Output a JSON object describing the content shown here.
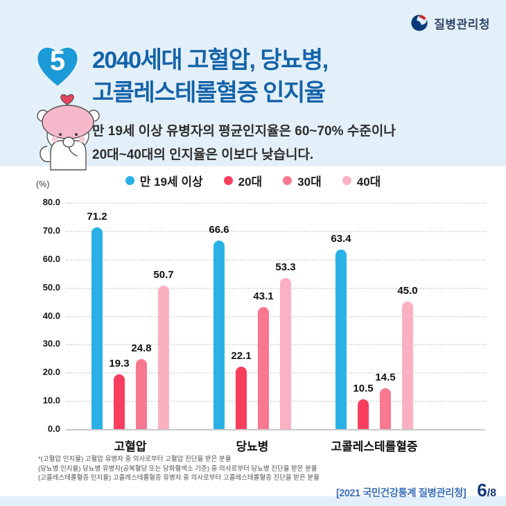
{
  "header": {
    "agency_name": "질병관리청",
    "badge_number": "5",
    "title_line1": "2040세대 고혈압, 당뇨병,",
    "title_line2": "고콜레스테롤혈증 인지율",
    "subtitle_line1": "만 19세 이상 유병자의 평균인지율은 60~70% 수준이나",
    "subtitle_line2": "20대~40대의 인지율은 이보다 낮습니다."
  },
  "chart_data": {
    "type": "bar",
    "title": "2040세대 고혈압, 당뇨병, 고콜레스테롤혈증 인지율",
    "unit_label": "(%)",
    "categories": [
      "고혈압",
      "당뇨병",
      "고콜레스테롤혈증"
    ],
    "series": [
      {
        "name": "만 19세 이상",
        "color": "#29B1E6",
        "values": [
          71.2,
          66.6,
          63.4
        ]
      },
      {
        "name": "20대",
        "color": "#F73E5F",
        "values": [
          19.3,
          22.1,
          10.5
        ]
      },
      {
        "name": "30대",
        "color": "#F8798F",
        "values": [
          24.8,
          43.1,
          14.5
        ]
      },
      {
        "name": "40대",
        "color": "#FBB0C1",
        "values": [
          50.7,
          53.3,
          45.0
        ]
      }
    ],
    "ylim": [
      0,
      80
    ],
    "yticks": [
      80,
      70,
      60,
      50,
      40,
      30,
      20,
      10,
      0
    ],
    "grid": "dotted-horizontal",
    "legend_position": "top"
  },
  "footnotes": [
    "*(고혈압 인지율) 고혈압 유병자 중 의사로부터 고혈압 진단을 받은 분율",
    "(당뇨병 인지율) 당뇨병 유병자(공복혈당 또는 당화혈색소 기준) 중 의사로부터 당뇨병 진단을 받은 분율",
    "(고콜레스테롤혈증 인지율) 고콜레스테롤혈증 유병자 중 의사로부터 고콜레스테롤혈증 진단을 받은 분율"
  ],
  "footer": {
    "source": "[2021 국민건강통계 질병관리청]",
    "page_current": "6",
    "page_total": "/8"
  },
  "colors": {
    "header_background": "#E4F0F9",
    "title_blue": "#1463A9",
    "badge_heart_blue": "#1B9AD7",
    "source_blue": "#3A70B7",
    "page_navy": "#16387B"
  }
}
